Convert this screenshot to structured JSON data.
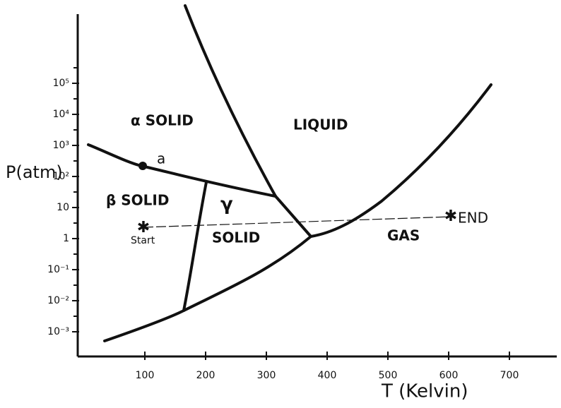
{
  "axes": {
    "y_label": "P(atm)",
    "x_label": "T (Kelvin)",
    "y_ticks": [
      "10⁵",
      "10⁴",
      "10³",
      "10²",
      "10",
      "1",
      "10⁻¹",
      "10⁻²",
      "10⁻³"
    ],
    "x_ticks": [
      "100",
      "200",
      "300",
      "400",
      "500",
      "600",
      "700"
    ]
  },
  "regions": [
    "α SOLID",
    "LIQUID",
    "β SOLID",
    "γ",
    "SOLID",
    "GAS"
  ],
  "points": {
    "a": "a",
    "start": "Start",
    "end": "END"
  }
}
